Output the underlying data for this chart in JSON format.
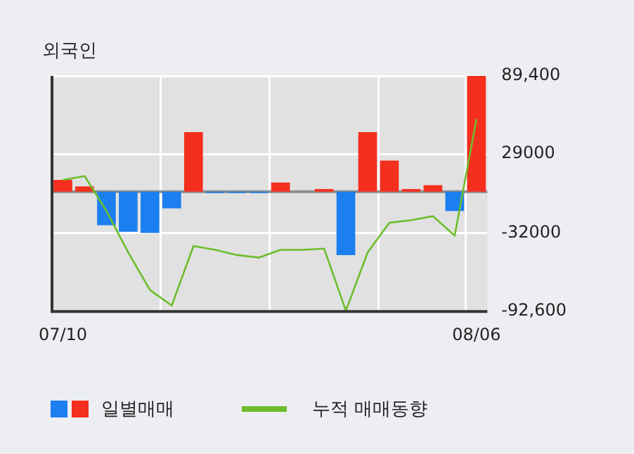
{
  "chart_data": {
    "type": "bar",
    "title": "외국인",
    "categories": [
      "07/10",
      null,
      null,
      null,
      null,
      null,
      null,
      null,
      null,
      null,
      null,
      null,
      null,
      null,
      null,
      null,
      null,
      null,
      null,
      "08/06"
    ],
    "series": [
      {
        "name": "일별매매",
        "colors": [
          "#f42f1e",
          "#f42f1e",
          "#1b7ff0",
          "#1b7ff0",
          "#1b7ff0",
          "#1b7ff0",
          "#f42f1e",
          "#1b7ff0",
          "#1b7ff0",
          "#1b7ff0",
          "#f42f1e",
          "#f42f1e",
          "#f42f1e",
          "#1b7ff0",
          "#f42f1e",
          "#f42f1e",
          "#f42f1e",
          "#f42f1e",
          "#1b7ff0",
          "#f42f1e"
        ],
        "values": [
          9000,
          4000,
          -26000,
          -31000,
          -32000,
          -13000,
          46000,
          -1000,
          -1000,
          -1000,
          7000,
          0,
          2000,
          -49000,
          46000,
          24000,
          2000,
          5000,
          -15000,
          89400
        ]
      },
      {
        "name": "누적 매매동향",
        "type": "line",
        "color": "#6cbd2b",
        "values": [
          9000,
          12000,
          -15000,
          -47000,
          -76000,
          -88000,
          -42000,
          -45000,
          -49000,
          -51000,
          -45000,
          -45000,
          -44000,
          -92000,
          -47000,
          -24000,
          -22000,
          -19000,
          -34000,
          56000
        ]
      }
    ],
    "ylim": [
      -92600,
      89400
    ],
    "yticks": [
      {
        "value": 89400,
        "label": "89,400"
      },
      {
        "value": 29000,
        "label": "29000"
      },
      {
        "value": -32000,
        "label": "-32000"
      },
      {
        "value": -92600,
        "label": "-92,600"
      }
    ],
    "grid": true,
    "legend": "bottom"
  }
}
